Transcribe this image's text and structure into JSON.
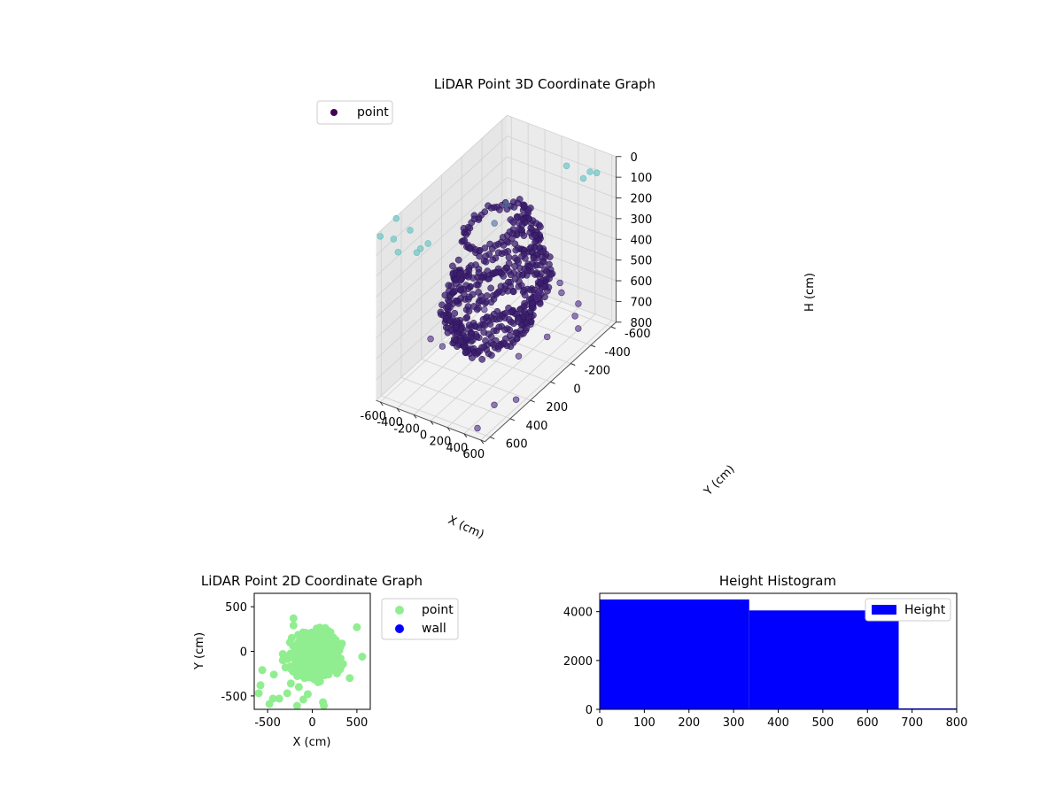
{
  "chart_data": [
    {
      "type": "scatter",
      "projection": "3d",
      "title": "LiDAR Point 3D Coordinate Graph",
      "xlabel": "X (cm)",
      "ylabel": "Y (cm)",
      "zlabel": "H (cm)",
      "xlim": [
        -650,
        650
      ],
      "ylim": [
        -650,
        650
      ],
      "zlim": [
        800,
        0
      ],
      "z_inverted": true,
      "grid": true,
      "legend": {
        "position": "top-left",
        "entries": [
          {
            "label": "point",
            "color": "#440154"
          }
        ]
      },
      "x_ticks": [
        "-600",
        "-400",
        "-200",
        "0",
        "200",
        "400",
        "600"
      ],
      "y_ticks": [
        "-600",
        "-400",
        "-200",
        "0",
        "200",
        "400",
        "600"
      ],
      "z_ticks": [
        "0",
        "100",
        "200",
        "300",
        "400",
        "500",
        "600",
        "700",
        "800"
      ],
      "colormap": "viridis",
      "series": [
        {
          "name": "point",
          "color_scale": "viridis (colored by H)",
          "structure_rings": [
            {
              "h": 150,
              "r": 260,
              "n": 70,
              "arc": [
                0.0,
                6.28
              ]
            },
            {
              "h": 250,
              "r": 330,
              "n": 60,
              "arc": [
                4.2,
                8.6
              ]
            },
            {
              "h": 330,
              "r": 360,
              "n": 60,
              "arc": [
                4.0,
                8.9
              ]
            },
            {
              "h": 450,
              "r": 420,
              "n": 110,
              "arc": [
                0.0,
                6.28
              ]
            },
            {
              "h": 520,
              "r": 380,
              "n": 110,
              "arc": [
                0.0,
                6.28
              ]
            },
            {
              "h": 600,
              "r": 320,
              "n": 90,
              "arc": [
                0.0,
                6.28
              ]
            },
            {
              "h": 660,
              "r": 240,
              "n": 60,
              "arc": [
                0.0,
                6.28
              ]
            }
          ],
          "scatter_points": [
            {
              "x": -600,
              "y": 650,
              "h": 0
            },
            {
              "x": -500,
              "y": 600,
              "h": 20
            },
            {
              "x": -400,
              "y": 640,
              "h": 50
            },
            {
              "x": -650,
              "y": 450,
              "h": 10
            },
            {
              "x": -300,
              "y": 500,
              "h": 80
            },
            {
              "x": -520,
              "y": 420,
              "h": 60
            },
            {
              "x": -200,
              "y": 620,
              "h": 30
            },
            {
              "x": -150,
              "y": 550,
              "h": 10
            },
            {
              "x": 500,
              "y": -450,
              "h": 40
            },
            {
              "x": 600,
              "y": -500,
              "h": 20
            },
            {
              "x": 400,
              "y": -600,
              "h": 90
            },
            {
              "x": 300,
              "y": -450,
              "h": 10
            },
            {
              "x": -600,
              "y": -600,
              "h": 400
            },
            {
              "x": -620,
              "y": -500,
              "h": 450
            },
            {
              "x": -560,
              "y": -640,
              "h": 500
            },
            {
              "x": 580,
              "y": 500,
              "h": 700
            },
            {
              "x": 550,
              "y": -50,
              "h": 620
            },
            {
              "x": 620,
              "y": -300,
              "h": 680
            },
            {
              "x": 400,
              "y": -450,
              "h": 720
            },
            {
              "x": -400,
              "y": 200,
              "h": 700
            },
            {
              "x": -200,
              "y": -600,
              "h": 760
            },
            {
              "x": 200,
              "y": -650,
              "h": 780
            },
            {
              "x": 600,
              "y": 300,
              "h": 760
            },
            {
              "x": 500,
              "y": 600,
              "h": 780
            },
            {
              "x": -500,
              "y": -300,
              "h": 760
            },
            {
              "x": 450,
              "y": 150,
              "h": 640
            },
            {
              "x": 300,
              "y": -400,
              "h": 600
            },
            {
              "x": -300,
              "y": 400,
              "h": 560
            },
            {
              "x": 100,
              "y": -550,
              "h": 650
            },
            {
              "x": -50,
              "y": -450,
              "h": 700
            }
          ]
        }
      ]
    },
    {
      "type": "scatter",
      "title": "LiDAR Point 2D Coordinate Graph",
      "xlabel": "X (cm)",
      "ylabel": "Y (cm)",
      "xlim": [
        -650,
        650
      ],
      "ylim": [
        -650,
        650
      ],
      "x_ticks": [
        "-500",
        "0",
        "500"
      ],
      "y_ticks": [
        "-500",
        "0",
        "500"
      ],
      "legend": {
        "position": "outside-right",
        "entries": [
          {
            "label": "point",
            "color": "#90ee90"
          },
          {
            "label": "wall",
            "color": "#0000ff"
          }
        ]
      },
      "series": [
        {
          "name": "point",
          "color": "#90ee90",
          "cluster": {
            "cx": 40,
            "cy": -40,
            "rx": 330,
            "ry": 320
          },
          "points": [
            [
              -580,
              -380
            ],
            [
              -600,
              -470
            ],
            [
              -440,
              -530
            ],
            [
              -480,
              -590
            ],
            [
              -370,
              -530
            ],
            [
              -280,
              -470
            ],
            [
              -240,
              -360
            ],
            [
              -560,
              -210
            ],
            [
              -430,
              -260
            ],
            [
              -170,
              -610
            ],
            [
              -100,
              -540
            ],
            [
              120,
              -570
            ],
            [
              130,
              -610
            ],
            [
              -50,
              -480
            ],
            [
              -210,
              370
            ],
            [
              -210,
              290
            ],
            [
              -230,
              150
            ],
            [
              -250,
              100
            ],
            [
              560,
              -60
            ],
            [
              500,
              270
            ],
            [
              -300,
              -180
            ],
            [
              -330,
              -100
            ],
            [
              -330,
              -30
            ],
            [
              420,
              -300
            ],
            [
              -150,
              -400
            ]
          ]
        },
        {
          "name": "wall",
          "color": "#0000ff",
          "points": []
        }
      ]
    },
    {
      "type": "bar",
      "title": "Height Histogram",
      "xlim": [
        0,
        800
      ],
      "ylim": [
        0,
        4750
      ],
      "x_ticks": [
        "0",
        "100",
        "200",
        "300",
        "400",
        "500",
        "600",
        "700",
        "800"
      ],
      "y_ticks": [
        "0",
        "2000",
        "4000"
      ],
      "legend": {
        "position": "top-right",
        "entries": [
          {
            "label": "Height",
            "color": "#0000ff"
          }
        ]
      },
      "series": [
        {
          "name": "Height",
          "color": "#0000ff",
          "bins": [
            {
              "from": 0,
              "to": 335,
              "count": 4500
            },
            {
              "from": 335,
              "to": 670,
              "count": 4050
            },
            {
              "from": 670,
              "to": 1005,
              "count": 40
            }
          ]
        }
      ]
    }
  ]
}
